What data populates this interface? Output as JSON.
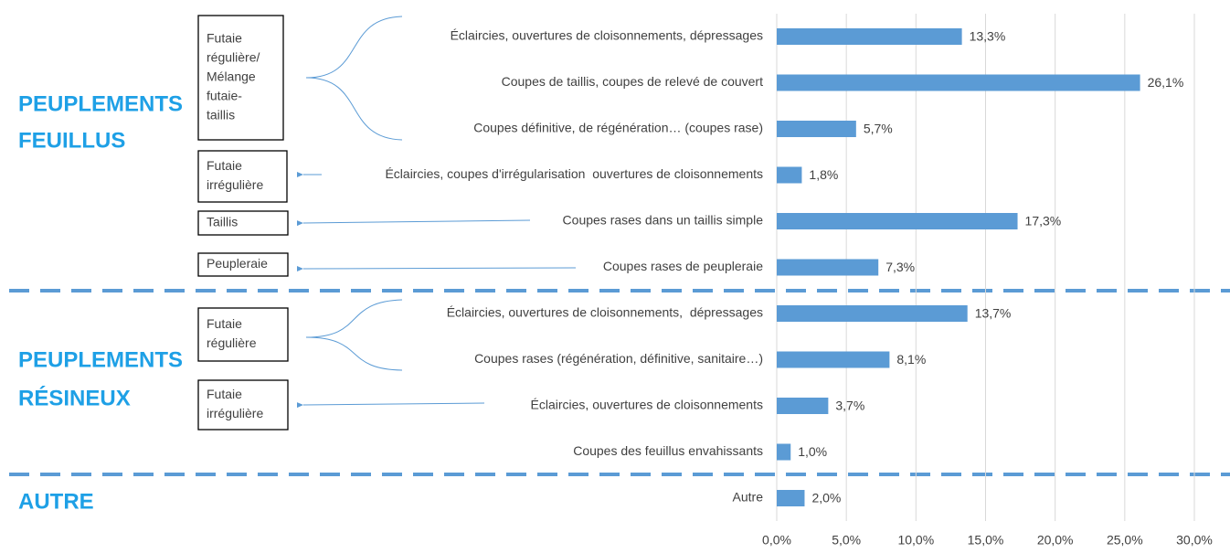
{
  "chart_data": {
    "type": "bar",
    "orientation": "horizontal",
    "categories": [
      "Éclaircies, ouvertures de cloisonnements, dépressages",
      "Coupes de taillis, coupes de relevé de couvert",
      "Coupes définitive, de régénération… (coupes rase)",
      "Éclaircies, coupes d'irrégularisation  ouvertures de cloisonnements",
      "Coupes rases dans un taillis simple",
      "Coupes rases de peupleraie",
      "Éclaircies, ouvertures de cloisonnements,  dépressages",
      "Coupes rases (régénération, définitive, sanitaire…)",
      "Éclaircies, ouvertures de cloisonnements",
      "Coupes des feuillus envahissants",
      "Autre"
    ],
    "values": [
      13.3,
      26.1,
      5.7,
      1.8,
      17.3,
      7.3,
      13.7,
      8.1,
      3.7,
      1.0,
      2.0
    ],
    "value_labels": [
      "13,3%",
      "26,1%",
      "5,7%",
      "1,8%",
      "17,3%",
      "7,3%",
      "13,7%",
      "8,1%",
      "3,7%",
      "1,0%",
      "2,0%"
    ],
    "color": "#5b9bd5",
    "xlim": [
      0,
      30
    ],
    "xticks": [
      {
        "value": 0,
        "label": "0,0%"
      },
      {
        "value": 5,
        "label": "5,0%"
      },
      {
        "value": 10,
        "label": "10,0%"
      },
      {
        "value": 15,
        "label": "15,0%"
      },
      {
        "value": 20,
        "label": "20,0%"
      },
      {
        "value": 25,
        "label": "25,0%"
      },
      {
        "value": 30,
        "label": "30,0%"
      }
    ],
    "grid": true
  },
  "groups": [
    {
      "lines": [
        "PEUPLEMENTS",
        "FEUILLUS"
      ]
    },
    {
      "lines": [
        "PEUPLEMENTS",
        "RÉSINEUX"
      ]
    },
    {
      "lines": [
        "AUTRE"
      ]
    }
  ],
  "boxes": [
    {
      "lines": [
        "Futaie",
        "régulière/",
        "Mélange",
        "futaie-",
        "taillis"
      ]
    },
    {
      "lines": [
        "Futaie",
        "irrégulière"
      ]
    },
    {
      "lines": [
        "Taillis"
      ]
    },
    {
      "lines": [
        "Peupleraie"
      ]
    },
    {
      "lines": [
        "Futaie",
        "régulière"
      ]
    },
    {
      "lines": [
        "Futaie",
        "irrégulière"
      ]
    }
  ]
}
